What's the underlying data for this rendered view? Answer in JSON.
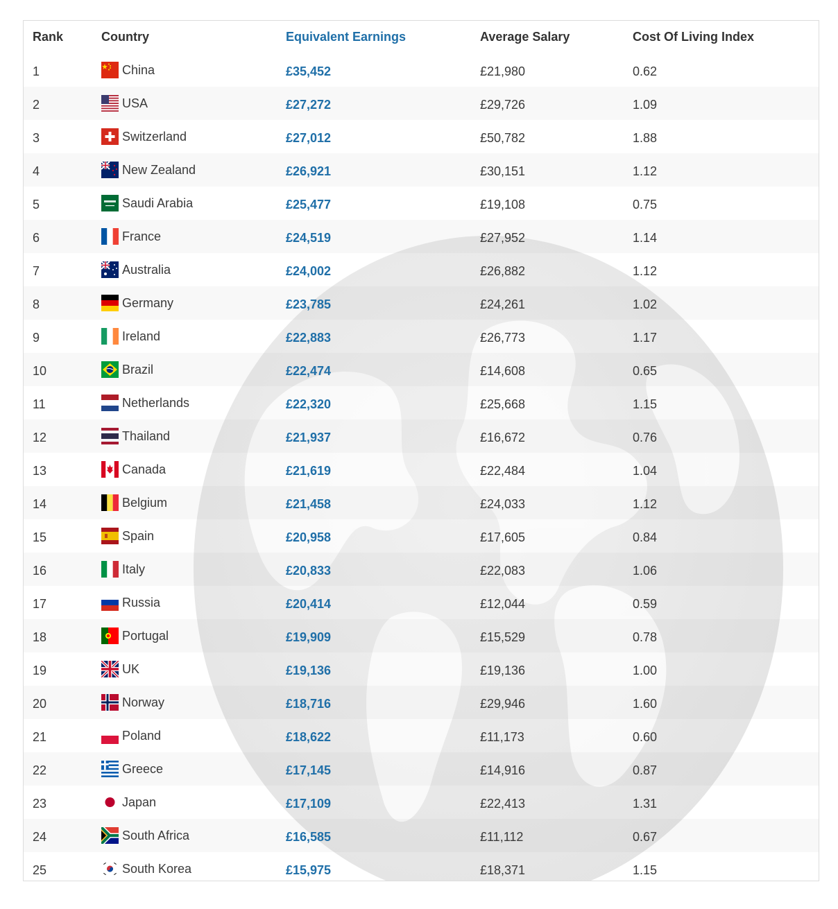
{
  "table": {
    "headers": {
      "rank": "Rank",
      "country": "Country",
      "equivalent": "Equivalent Earnings",
      "average": "Average Salary",
      "col": "Cost Of Living Index"
    },
    "rows": [
      {
        "rank": "1",
        "country": "China",
        "flag": "china-flag-icon",
        "equivalent": "£35,452",
        "average": "£21,980",
        "col": "0.62"
      },
      {
        "rank": "2",
        "country": "USA",
        "flag": "usa-flag-icon",
        "equivalent": "£27,272",
        "average": "£29,726",
        "col": "1.09"
      },
      {
        "rank": "3",
        "country": "Switzerland",
        "flag": "switzerland-flag-icon",
        "equivalent": "£27,012",
        "average": "£50,782",
        "col": "1.88"
      },
      {
        "rank": "4",
        "country": "New Zealand",
        "flag": "new-zealand-flag-icon",
        "equivalent": "£26,921",
        "average": "£30,151",
        "col": "1.12"
      },
      {
        "rank": "5",
        "country": "Saudi Arabia",
        "flag": "saudi-arabia-flag-icon",
        "equivalent": "£25,477",
        "average": "£19,108",
        "col": "0.75"
      },
      {
        "rank": "6",
        "country": "France",
        "flag": "france-flag-icon",
        "equivalent": "£24,519",
        "average": "£27,952",
        "col": "1.14"
      },
      {
        "rank": "7",
        "country": "Australia",
        "flag": "australia-flag-icon",
        "equivalent": "£24,002",
        "average": "£26,882",
        "col": "1.12"
      },
      {
        "rank": "8",
        "country": "Germany",
        "flag": "germany-flag-icon",
        "equivalent": "£23,785",
        "average": "£24,261",
        "col": "1.02"
      },
      {
        "rank": "9",
        "country": "Ireland",
        "flag": "ireland-flag-icon",
        "equivalent": "£22,883",
        "average": "£26,773",
        "col": "1.17"
      },
      {
        "rank": "10",
        "country": "Brazil",
        "flag": "brazil-flag-icon",
        "equivalent": "£22,474",
        "average": "£14,608",
        "col": "0.65"
      },
      {
        "rank": "11",
        "country": "Netherlands",
        "flag": "netherlands-flag-icon",
        "equivalent": "£22,320",
        "average": "£25,668",
        "col": "1.15"
      },
      {
        "rank": "12",
        "country": "Thailand",
        "flag": "thailand-flag-icon",
        "equivalent": "£21,937",
        "average": "£16,672",
        "col": "0.76"
      },
      {
        "rank": "13",
        "country": "Canada",
        "flag": "canada-flag-icon",
        "equivalent": "£21,619",
        "average": "£22,484",
        "col": "1.04"
      },
      {
        "rank": "14",
        "country": "Belgium",
        "flag": "belgium-flag-icon",
        "equivalent": "£21,458",
        "average": "£24,033",
        "col": "1.12"
      },
      {
        "rank": "15",
        "country": "Spain",
        "flag": "spain-flag-icon",
        "equivalent": "£20,958",
        "average": "£17,605",
        "col": "0.84"
      },
      {
        "rank": "16",
        "country": "Italy",
        "flag": "italy-flag-icon",
        "equivalent": "£20,833",
        "average": "£22,083",
        "col": "1.06"
      },
      {
        "rank": "17",
        "country": "Russia",
        "flag": "russia-flag-icon",
        "equivalent": "£20,414",
        "average": "£12,044",
        "col": "0.59"
      },
      {
        "rank": "18",
        "country": "Portugal",
        "flag": "portugal-flag-icon",
        "equivalent": "£19,909",
        "average": "£15,529",
        "col": "0.78"
      },
      {
        "rank": "19",
        "country": "UK",
        "flag": "uk-flag-icon",
        "equivalent": "£19,136",
        "average": "£19,136",
        "col": "1.00"
      },
      {
        "rank": "20",
        "country": "Norway",
        "flag": "norway-flag-icon",
        "equivalent": "£18,716",
        "average": "£29,946",
        "col": "1.60"
      },
      {
        "rank": "21",
        "country": "Poland",
        "flag": "poland-flag-icon",
        "equivalent": "£18,622",
        "average": "£11,173",
        "col": "0.60"
      },
      {
        "rank": "22",
        "country": "Greece",
        "flag": "greece-flag-icon",
        "equivalent": "£17,145",
        "average": "£14,916",
        "col": "0.87"
      },
      {
        "rank": "23",
        "country": "Japan",
        "flag": "japan-flag-icon",
        "equivalent": "£17,109",
        "average": "£22,413",
        "col": "1.31"
      },
      {
        "rank": "24",
        "country": "South Africa",
        "flag": "south-africa-flag-icon",
        "equivalent": "£16,585",
        "average": "£11,112",
        "col": "0.67"
      },
      {
        "rank": "25",
        "country": "South Korea",
        "flag": "south-korea-flag-icon",
        "equivalent": "£15,975",
        "average": "£18,371",
        "col": "1.15"
      }
    ]
  },
  "colors": {
    "accent": "#1f6fa8",
    "text": "#3a3a3a",
    "border": "#dcdcdc"
  },
  "background_icon": "globe-watermark-icon"
}
